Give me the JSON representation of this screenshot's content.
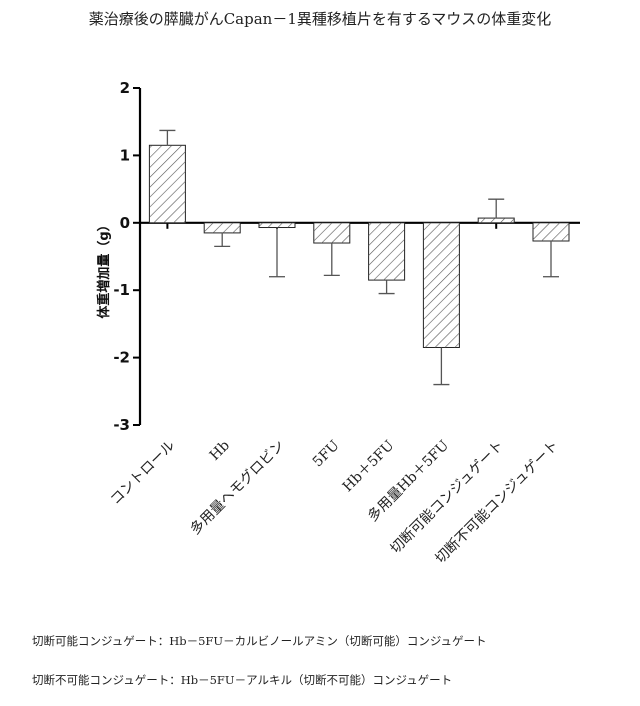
{
  "chart_data": {
    "type": "bar",
    "title": "薬治療後の膵臓がんCapan－1異種移植片を有するマウスの体重変化",
    "xlabel": "",
    "ylabel": "体重増加量（g）",
    "ylim": [
      -3,
      2
    ],
    "yticks": [
      "2",
      "1",
      "0",
      "-1",
      "-2",
      "-3"
    ],
    "grid": false,
    "legend": "none",
    "categories": [
      "コントロール",
      "Hb",
      "多用量ヘモグロビン",
      "5FU",
      "Hb＋5FU",
      "多用量Hb＋5FU",
      "切断可能コンジュゲート",
      "切断不可能コンジュゲート"
    ],
    "values": [
      1.15,
      -0.15,
      -0.07,
      -0.3,
      -0.85,
      -1.85,
      0.07,
      -0.27
    ],
    "errors": [
      0.22,
      0.2,
      0.73,
      0.48,
      0.2,
      0.55,
      0.28,
      0.53
    ],
    "bar_fill": "#ffffff",
    "hatch_color": "#555555"
  },
  "notes": [
    "切断可能コンジュゲート：Hb－5FU－カルビノールアミン（切断可能）コンジュゲート",
    "切断不可能コンジュゲート：Hb－5FU－アルキル（切断不可能）コンジュゲート"
  ]
}
